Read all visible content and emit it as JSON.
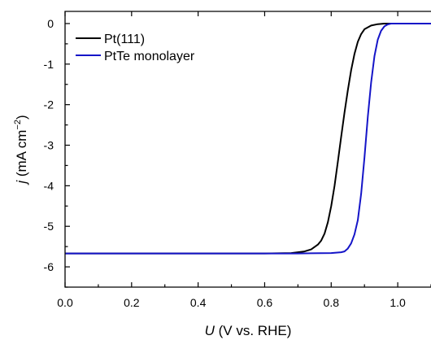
{
  "chart_data": {
    "type": "line",
    "title": "",
    "xlabel": {
      "italic": "U",
      "rest": " (V vs. RHE)"
    },
    "ylabel": {
      "italic": "j",
      "prefix": " (mA cm",
      "exp": "−2",
      "suffix": ")"
    },
    "xlim": [
      0.0,
      1.1
    ],
    "ylim": [
      -6.5,
      0.3
    ],
    "xticks": [
      "0.0",
      "0.2",
      "0.4",
      "0.6",
      "0.8",
      "1.0"
    ],
    "yticks": [
      "0",
      "-1",
      "-2",
      "-3",
      "-4",
      "-5",
      "-6"
    ],
    "grid": false,
    "legend": {
      "placement": "top-left"
    },
    "series": [
      {
        "name": "Pt(111)",
        "color": "#000000",
        "x": [
          0.0,
          0.6,
          0.68,
          0.72,
          0.74,
          0.76,
          0.77,
          0.78,
          0.79,
          0.8,
          0.81,
          0.82,
          0.83,
          0.84,
          0.85,
          0.86,
          0.87,
          0.88,
          0.89,
          0.9,
          0.92,
          0.94,
          0.96,
          0.98,
          1.1
        ],
        "y": [
          -5.67,
          -5.67,
          -5.66,
          -5.62,
          -5.57,
          -5.45,
          -5.35,
          -5.18,
          -4.9,
          -4.5,
          -4.0,
          -3.4,
          -2.8,
          -2.2,
          -1.65,
          -1.15,
          -0.75,
          -0.45,
          -0.26,
          -0.14,
          -0.05,
          -0.015,
          0.0,
          0.0,
          0.0
        ]
      },
      {
        "name": "PtTe monolayer",
        "color": "#1515c8",
        "x": [
          0.0,
          0.7,
          0.8,
          0.83,
          0.84,
          0.85,
          0.86,
          0.87,
          0.88,
          0.89,
          0.9,
          0.91,
          0.92,
          0.93,
          0.94,
          0.95,
          0.96,
          0.97,
          0.98,
          1.0,
          1.1
        ],
        "y": [
          -5.67,
          -5.67,
          -5.66,
          -5.64,
          -5.62,
          -5.55,
          -5.42,
          -5.2,
          -4.85,
          -4.2,
          -3.3,
          -2.3,
          -1.45,
          -0.8,
          -0.4,
          -0.18,
          -0.07,
          -0.02,
          0.0,
          0.0,
          0.0
        ]
      }
    ]
  }
}
